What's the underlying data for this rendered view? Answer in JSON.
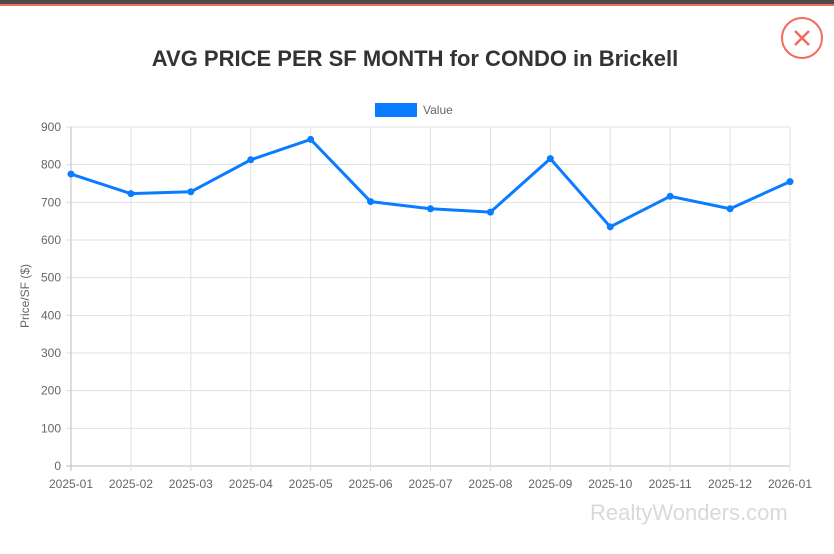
{
  "modal": {
    "close_icon": "close-circle-x-icon"
  },
  "watermark": "RealtyWonders.com",
  "colors": {
    "series": "#0a7cff",
    "close": "#f26b5b",
    "grid": "#e0e0e0"
  },
  "chart_data": {
    "type": "line",
    "title": "AVG PRICE PER SF MONTH for CONDO in Brickell",
    "xlabel": "",
    "ylabel": "Price/SF ($)",
    "ylim": [
      0,
      900
    ],
    "yticks": [
      0,
      100,
      200,
      300,
      400,
      500,
      600,
      700,
      800,
      900
    ],
    "grid": true,
    "legend": "top",
    "categories": [
      "2025-01",
      "2025-02",
      "2025-03",
      "2025-04",
      "2025-05",
      "2025-06",
      "2025-07",
      "2025-08",
      "2025-09",
      "2025-10",
      "2025-11",
      "2025-12",
      "2026-01"
    ],
    "series": [
      {
        "name": "Value",
        "values": [
          775,
          723,
          728,
          813,
          867,
          702,
          683,
          674,
          816,
          635,
          716,
          683,
          755
        ]
      }
    ]
  }
}
